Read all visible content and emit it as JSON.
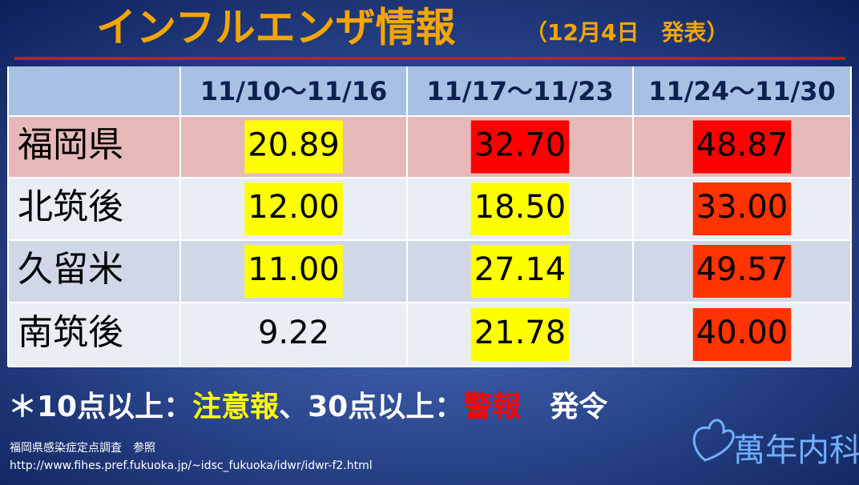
{
  "header": {
    "title": "インフルエンザ情報",
    "subtitle": "（12月4日　発表）"
  },
  "table": {
    "columns": [
      "11/10～11/16",
      "11/17～11/23",
      "11/24～11/30"
    ],
    "rows": [
      {
        "label": "福岡県",
        "background": "#e6b9b8",
        "cells": [
          {
            "text": "20.89",
            "color": "#ffff00"
          },
          {
            "text": "32.70",
            "color": "#ff0000"
          },
          {
            "text": "48.87",
            "color": "#ff0000"
          }
        ]
      },
      {
        "label": "北筑後",
        "background": "#e9edf4",
        "cells": [
          {
            "text": "12.00",
            "color": "#ffff00"
          },
          {
            "text": "18.50",
            "color": "#ffff00"
          },
          {
            "text": "33.00",
            "color": "#ff3300"
          }
        ]
      },
      {
        "label": "久留米",
        "background": "#d0d8e8",
        "cells": [
          {
            "text": "11.00",
            "color": "#ffff00"
          },
          {
            "text": "27.14",
            "color": "#ffff00"
          },
          {
            "text": "49.57",
            "color": "#ff3300"
          }
        ]
      },
      {
        "label": "南筑後",
        "background": "#e9edf4",
        "cells": [
          {
            "text": "9.22"
          },
          {
            "text": "21.78",
            "color": "#ffff00"
          },
          {
            "text": "40.00",
            "color": "#ff3300"
          }
        ]
      }
    ]
  },
  "note": [
    {
      "text": "＊10点以上：",
      "color": "#ffffff"
    },
    {
      "text": "注意報",
      "color": "#ffff00"
    },
    {
      "text": "、30点以上：",
      "color": "#ffffff"
    },
    {
      "text": "警報",
      "color": "#ff0000"
    },
    {
      "text": "　発令",
      "color": "#ffffff"
    }
  ],
  "source": {
    "text": "福岡県感染症定点調査　参照",
    "url": "http://www.fihes.pref.fukuoka.jp/~idsc_fukuoka/idwr/idwr-f2.html"
  },
  "logo": "萬年内科"
}
